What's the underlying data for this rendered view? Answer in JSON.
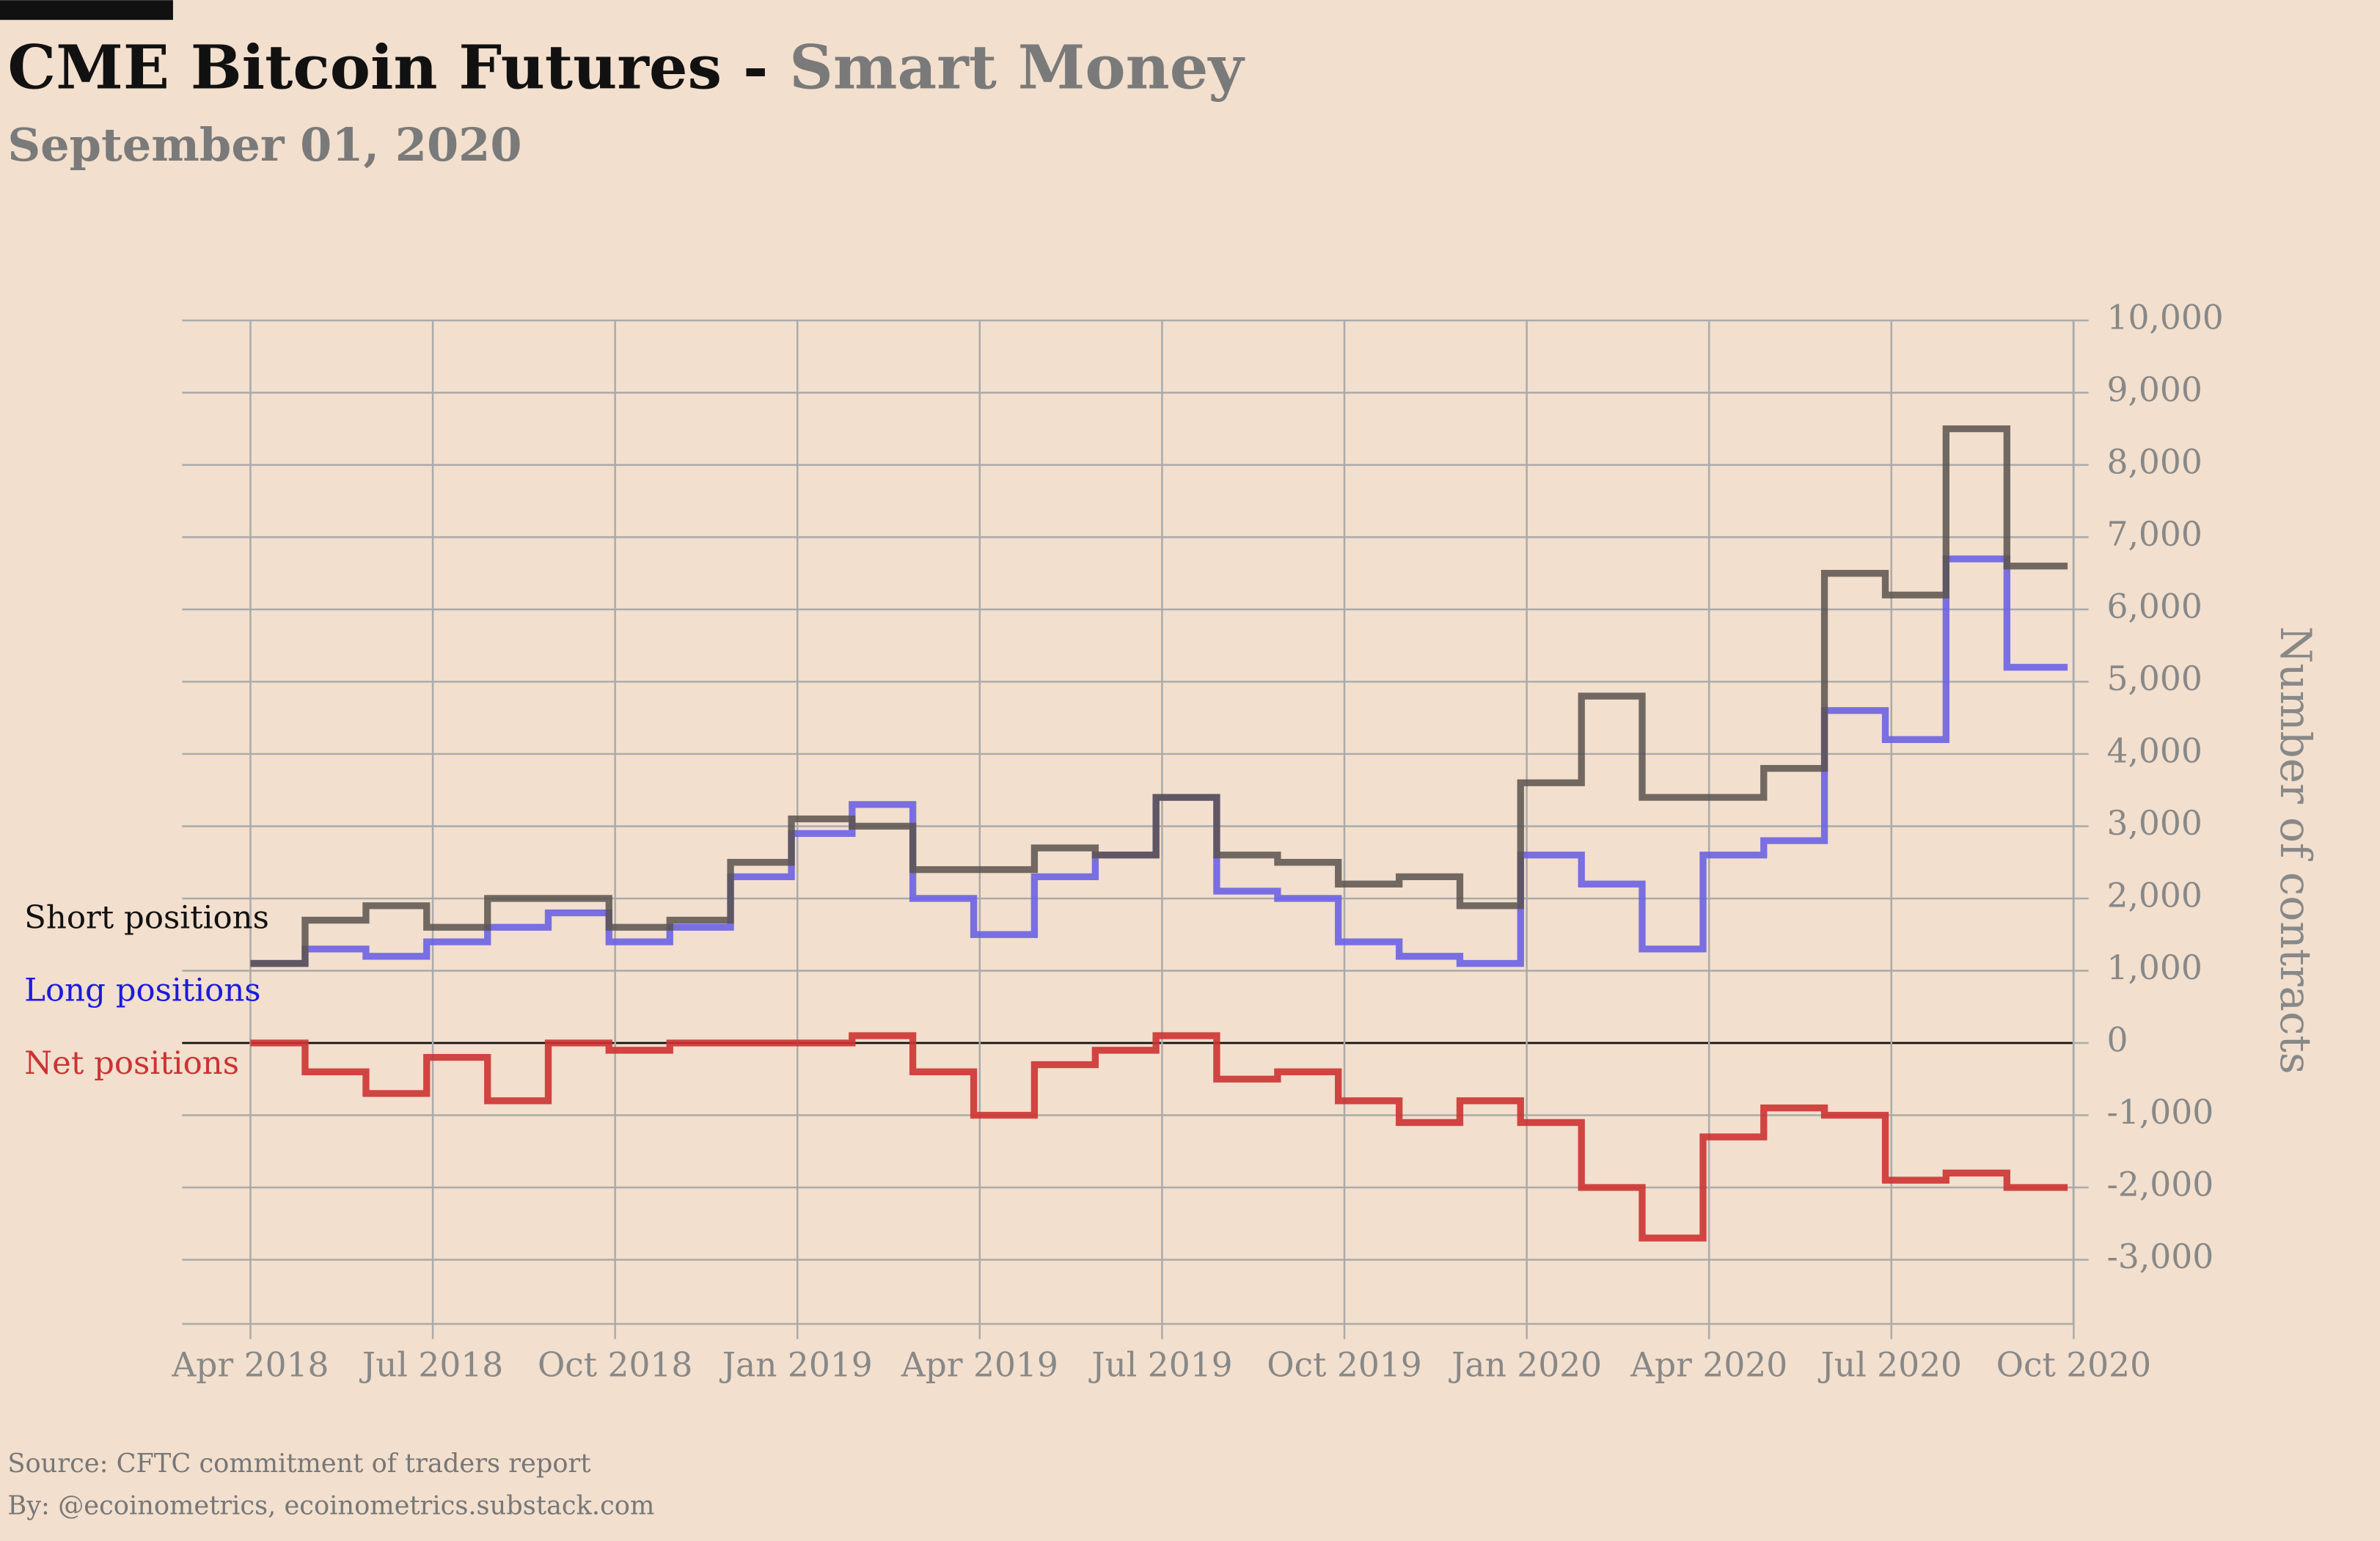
{
  "chart_data": {
    "type": "step",
    "title": "CME Bitcoin Futures -",
    "title_highlight": "Smart Money",
    "subtitle": "September 01, 2020",
    "y_label": "Number of contracts",
    "source": "Source: CFTC commitment of traders report",
    "byline": "By: @ecoinometrics, ecoinometrics.substack.com",
    "categories": [
      "Apr 2018",
      null,
      null,
      "Jul 2018",
      null,
      null,
      "Oct 2018",
      null,
      null,
      "Jan 2019",
      null,
      null,
      "Apr 2019",
      null,
      null,
      "Jul 2019",
      null,
      null,
      "Oct 2019",
      null,
      null,
      "Jan 2020",
      null,
      null,
      "Apr 2020",
      null,
      null,
      "Jul 2020",
      null,
      null,
      "Oct 2020"
    ],
    "series": [
      {
        "name": "Short positions",
        "color": "#5b534d",
        "values": [
          1100,
          1700,
          1900,
          1600,
          2000,
          2000,
          1600,
          1700,
          2500,
          3100,
          3000,
          2400,
          2400,
          2700,
          2600,
          3400,
          2600,
          2500,
          2200,
          2300,
          1900,
          3600,
          4800,
          3400,
          3400,
          3800,
          6500,
          6200,
          8500,
          6600,
          null
        ]
      },
      {
        "name": "Long positions",
        "color": "#6b62e4",
        "values": [
          1100,
          1300,
          1200,
          1400,
          1600,
          1800,
          1400,
          1600,
          2300,
          2900,
          3300,
          2000,
          1500,
          2300,
          2600,
          3400,
          2100,
          2000,
          1400,
          1200,
          1100,
          2600,
          2200,
          1300,
          2600,
          2800,
          4600,
          4200,
          6700,
          5200,
          null
        ]
      },
      {
        "name": "Net positions",
        "color": "#cc3333",
        "values": [
          0,
          -400,
          -700,
          -200,
          -800,
          0,
          -100,
          0,
          0,
          0,
          100,
          -400,
          -1000,
          -300,
          -100,
          100,
          -500,
          -400,
          -800,
          -1100,
          -800,
          -1100,
          -2000,
          -2700,
          -1300,
          -900,
          -1000,
          -1900,
          -1800,
          -2000,
          null
        ]
      }
    ],
    "ylim": [
      -3300,
      10000
    ],
    "yticks": [
      {
        "value": -3000,
        "label": "-3,000"
      },
      {
        "value": -2000,
        "label": "-2,000"
      },
      {
        "value": -1000,
        "label": "-1,000"
      },
      0,
      {
        "value": 1000,
        "label": "1,000"
      },
      {
        "value": 2000,
        "label": "2,000"
      },
      {
        "value": 3000,
        "label": "3,000"
      },
      {
        "value": 4000,
        "label": "4,000"
      },
      {
        "value": 5000,
        "label": "5,000"
      },
      {
        "value": 6000,
        "label": "6,000"
      },
      {
        "value": 7000,
        "label": "7,000"
      },
      {
        "value": 8000,
        "label": "8,000"
      },
      {
        "value": 9000,
        "label": "9,000"
      },
      {
        "value": 10000,
        "label": "10,000"
      }
    ],
    "grid": true
  }
}
